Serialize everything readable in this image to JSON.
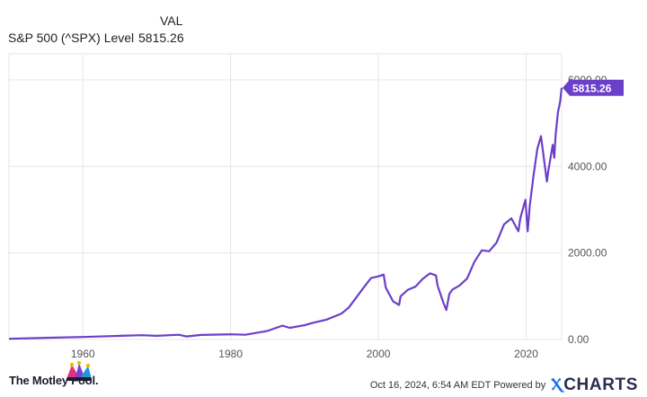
{
  "legend": {
    "header": "VAL",
    "series_name": "S&P 500 (^SPX) Level",
    "value": "5815.26"
  },
  "footer": {
    "brand": "The Motley Fool.",
    "timestamp": "Oct 16, 2024, 6:54 AM EDT  Powered by",
    "provider": "CHARTS"
  },
  "colors": {
    "series": "#6c3fc9",
    "grid": "#e6e6e6",
    "axis_text": "#555555",
    "badge": "#6c3fc9"
  },
  "chart_data": {
    "type": "line",
    "title": "",
    "xlabel": "",
    "ylabel": "",
    "xlim": [
      1950,
      2024.8
    ],
    "ylim": [
      0,
      6600
    ],
    "x_ticks": [
      1960,
      1980,
      2000,
      2020
    ],
    "x_tick_labels": [
      "1960",
      "1980",
      "2000",
      "2020"
    ],
    "y_ticks": [
      0,
      2000,
      4000,
      6000
    ],
    "y_tick_labels": [
      "0.00",
      "2000.00",
      "4000.00",
      "6000.00"
    ],
    "grid": true,
    "last_value_label": "5815.26",
    "series": [
      {
        "name": "S&P 500 (^SPX) Level",
        "x": [
          1950,
          1955,
          1960,
          1965,
          1968,
          1970,
          1973,
          1974,
          1976,
          1980,
          1982,
          1985,
          1987,
          1988,
          1990,
          1991,
          1993,
          1995,
          1996,
          1997,
          1998,
          1999,
          2000,
          2000.7,
          2001,
          2002,
          2002.8,
          2003,
          2004,
          2005,
          2006,
          2007,
          2007.8,
          2008,
          2008.8,
          2009.2,
          2009.6,
          2010,
          2011,
          2012,
          2013,
          2014,
          2015,
          2016,
          2017,
          2018,
          2018.95,
          2019.2,
          2019.9,
          2020.2,
          2020.5,
          2021,
          2021.5,
          2022,
          2022.8,
          2023,
          2023.6,
          2023.8,
          2024,
          2024.3,
          2024.6,
          2024.8
        ],
        "y": [
          17,
          40,
          58,
          85,
          100,
          85,
          110,
          70,
          105,
          120,
          110,
          200,
          320,
          270,
          330,
          380,
          460,
          600,
          740,
          970,
          1200,
          1420,
          1460,
          1500,
          1200,
          880,
          800,
          1000,
          1150,
          1220,
          1400,
          1530,
          1480,
          1250,
          850,
          680,
          1050,
          1150,
          1250,
          1410,
          1800,
          2060,
          2040,
          2240,
          2660,
          2800,
          2500,
          2800,
          3230,
          2500,
          3100,
          3800,
          4400,
          4700,
          3650,
          3900,
          4500,
          4200,
          4750,
          5250,
          5500,
          5815.26
        ]
      }
    ]
  }
}
